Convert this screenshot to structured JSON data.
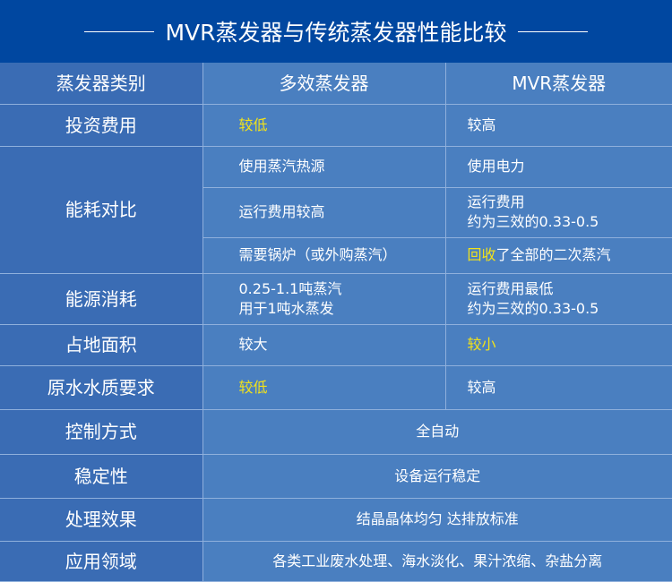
{
  "title": "MVR蒸发器与传统蒸发器性能比较",
  "colors": {
    "header_bg": "#0047a0",
    "category_bg": "#3a6cb4",
    "cell_bg": "#4a7fc0",
    "highlight": "#f2e21a"
  },
  "columns": [
    "蒸发器类别",
    "多效蒸发器",
    "MVR蒸发器"
  ],
  "rows": {
    "investment": {
      "label": "投资费用",
      "multi": "较低",
      "mvr": "较高"
    },
    "energy": {
      "label": "能耗对比",
      "multi": [
        "使用蒸汽热源",
        "运行费用较高",
        "需要锅炉（或外购蒸汽）"
      ],
      "mvr": [
        "使用电力",
        "运行费用",
        "约为三效的0.33-0.5"
      ],
      "mvr_recover_hl": "回收",
      "mvr_recover_rest": "了全部的二次蒸汽"
    },
    "consumption": {
      "label": "能源消耗",
      "multi": [
        "0.25-1.1吨蒸汽",
        "用于1吨水蒸发"
      ],
      "mvr": [
        "运行费用最低",
        "约为三效的0.33-0.5"
      ]
    },
    "area": {
      "label": "占地面积",
      "multi": "较大",
      "mvr": "较小"
    },
    "water": {
      "label": "原水水质要求",
      "multi": "较低",
      "mvr": "较高"
    },
    "control": {
      "label": "控制方式",
      "value": "全自动"
    },
    "stability": {
      "label": "稳定性",
      "value": "设备运行稳定"
    },
    "effect": {
      "label": "处理效果",
      "value": "结晶晶体均匀 达排放标准"
    },
    "application": {
      "label": "应用领域",
      "value": "各类工业废水处理、海水淡化、果汁浓缩、杂盐分离"
    }
  }
}
